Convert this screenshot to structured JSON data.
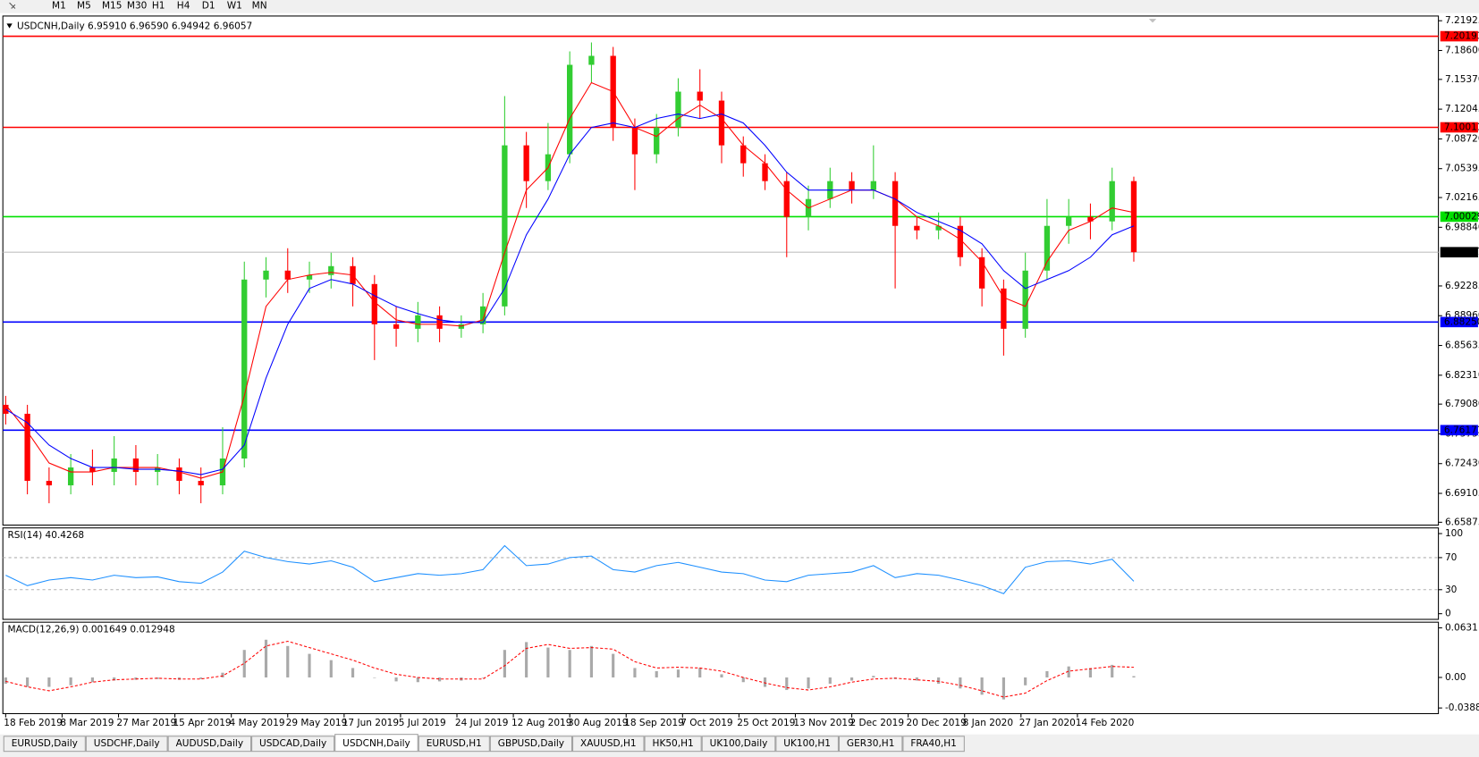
{
  "toolbar": {
    "timeframes": [
      "M1",
      "M5",
      "M15",
      "M30",
      "H1",
      "H4",
      "D1",
      "W1",
      "MN"
    ]
  },
  "chart_data": [
    {
      "type": "candlestick",
      "title": "USDCNH,Daily  6.95910 6.96590 6.94942 6.96057",
      "x": [
        0,
        5,
        10,
        15,
        20,
        25,
        30,
        35,
        40,
        45,
        50,
        55,
        60,
        65,
        70,
        75,
        80,
        85,
        90,
        95,
        100,
        105,
        110,
        115,
        120,
        125,
        130,
        135,
        140,
        145,
        150,
        155,
        160,
        165,
        170,
        175,
        180,
        185,
        190,
        195,
        200,
        205,
        210,
        215,
        220,
        225,
        230,
        235,
        240,
        245,
        250,
        255,
        260
      ],
      "xlim": [
        -0.65,
        330.2
      ],
      "open": [
        6.79,
        6.78,
        6.705,
        6.7,
        6.72,
        6.715,
        6.73,
        6.715,
        6.72,
        6.705,
        6.7,
        6.73,
        6.93,
        6.94,
        6.93,
        6.935,
        6.945,
        6.925,
        6.88,
        6.875,
        6.89,
        6.875,
        6.88,
        6.9,
        7.08,
        7.04,
        7.07,
        7.17,
        7.18,
        7.1,
        7.07,
        7.1,
        7.14,
        7.13,
        7.08,
        7.06,
        7.04,
        7.0,
        7.02,
        7.04,
        7.03,
        7.04,
        6.99,
        6.985,
        6.99,
        6.955,
        6.92,
        6.875,
        6.94,
        6.99,
        7.0,
        6.995,
        7.04
      ],
      "high": [
        6.8,
        6.79,
        6.72,
        6.735,
        6.74,
        6.755,
        6.745,
        6.735,
        6.73,
        6.72,
        6.765,
        6.95,
        6.955,
        6.965,
        6.95,
        6.96,
        6.955,
        6.935,
        6.9,
        6.905,
        6.9,
        6.89,
        6.915,
        7.135,
        7.095,
        7.105,
        7.185,
        7.195,
        7.19,
        7.11,
        7.115,
        7.155,
        7.165,
        7.14,
        7.09,
        7.07,
        7.05,
        7.035,
        7.055,
        7.05,
        7.08,
        7.05,
        7.0,
        7.005,
        7.0,
        6.965,
        6.93,
        6.96,
        7.02,
        7.02,
        7.015,
        7.055,
        7.045
      ],
      "low": [
        6.768,
        6.69,
        6.68,
        6.69,
        6.7,
        6.7,
        6.7,
        6.7,
        6.69,
        6.68,
        6.69,
        6.72,
        6.91,
        6.915,
        6.915,
        6.92,
        6.9,
        6.84,
        6.855,
        6.86,
        6.86,
        6.865,
        6.87,
        6.89,
        7.01,
        7.03,
        7.06,
        7.15,
        7.085,
        7.03,
        7.06,
        7.09,
        7.11,
        7.06,
        7.045,
        7.03,
        6.955,
        6.985,
        7.01,
        7.015,
        7.02,
        6.92,
        6.975,
        6.975,
        6.945,
        6.9,
        6.845,
        6.865,
        6.93,
        6.97,
        6.975,
        6.985,
        6.95
      ],
      "close": [
        6.78,
        6.705,
        6.7,
        6.72,
        6.715,
        6.73,
        6.715,
        6.72,
        6.705,
        6.7,
        6.73,
        6.93,
        6.94,
        6.93,
        6.935,
        6.945,
        6.925,
        6.88,
        6.875,
        6.89,
        6.875,
        6.88,
        6.9,
        7.08,
        7.04,
        7.07,
        7.17,
        7.18,
        7.1,
        7.07,
        7.1,
        7.14,
        7.13,
        7.08,
        7.06,
        7.04,
        7.0,
        7.02,
        7.04,
        7.03,
        7.04,
        6.99,
        6.985,
        6.99,
        6.955,
        6.92,
        6.875,
        6.94,
        6.99,
        7.0,
        6.995,
        7.04,
        6.96057
      ],
      "up_color": "#32cd32",
      "down_color": "#ff0000",
      "series": [
        {
          "color": "#ff0000",
          "values": [
            6.79,
            6.76,
            6.725,
            6.715,
            6.715,
            6.72,
            6.72,
            6.72,
            6.715,
            6.708,
            6.715,
            6.8,
            6.9,
            6.93,
            6.935,
            6.938,
            6.935,
            6.905,
            6.885,
            6.88,
            6.88,
            6.878,
            6.885,
            6.96,
            7.03,
            7.055,
            7.11,
            7.15,
            7.14,
            7.1,
            7.09,
            7.11,
            7.125,
            7.11,
            7.08,
            7.06,
            7.03,
            7.01,
            7.02,
            7.03,
            7.03,
            7.02,
            7.0,
            6.99,
            6.975,
            6.95,
            6.91,
            6.9,
            6.95,
            6.985,
            6.995,
            7.01,
            7.005
          ]
        },
        {
          "color": "#0000ff",
          "values": [
            6.785,
            6.77,
            6.745,
            6.73,
            6.72,
            6.72,
            6.718,
            6.718,
            6.716,
            6.712,
            6.718,
            6.745,
            6.82,
            6.88,
            6.92,
            6.93,
            6.925,
            6.912,
            6.9,
            6.892,
            6.885,
            6.882,
            6.882,
            6.92,
            6.98,
            7.02,
            7.07,
            7.1,
            7.105,
            7.1,
            7.11,
            7.115,
            7.11,
            7.115,
            7.105,
            7.08,
            7.05,
            7.03,
            7.03,
            7.03,
            7.03,
            7.02,
            7.005,
            6.995,
            6.985,
            6.97,
            6.94,
            6.92,
            6.93,
            6.94,
            6.955,
            6.98,
            6.99
          ]
        }
      ],
      "levels": [
        {
          "value": 7.20193,
          "color": "#ff0000"
        },
        {
          "value": 7.10011,
          "color": "#ff0000"
        },
        {
          "value": 7.00029,
          "color": "#00e000"
        },
        {
          "value": 6.96057,
          "color": "#c0c0c0",
          "label_color": "#000000"
        },
        {
          "value": 6.8825,
          "label": "6.88250",
          "color": "#0000ff"
        },
        {
          "value": 6.76171,
          "color": "#0000ff"
        }
      ],
      "ylim": [
        6.65559,
        7.22452
      ],
      "yticks": [
        7.21925,
        {
          "value": 7.186,
          "label": "7.18600"
        },
        {
          "value": 7.1537,
          "label": "7.15370"
        },
        7.12045,
        {
          "value": 7.0872,
          "label": "7.08720"
        },
        7.05395,
        7.02165,
        {
          "value": 6.9884,
          "label": "6.98840"
        },
        6.92285,
        {
          "value": 6.8896,
          "label": "6.88960"
        },
        6.85635,
        {
          "value": 6.8231,
          "label": "6.82310"
        },
        {
          "value": 6.7908,
          "label": "6.79080"
        },
        6.75755,
        {
          "value": 6.7243,
          "label": "6.72430"
        },
        6.69105,
        6.65875
      ]
    },
    {
      "type": "line",
      "title": "RSI(14) 40.4268",
      "x": [
        0,
        5,
        10,
        15,
        20,
        25,
        30,
        35,
        40,
        45,
        50,
        55,
        60,
        65,
        70,
        75,
        80,
        85,
        90,
        95,
        100,
        105,
        110,
        115,
        120,
        125,
        130,
        135,
        140,
        145,
        150,
        155,
        160,
        165,
        170,
        175,
        180,
        185,
        190,
        195,
        200,
        205,
        210,
        215,
        220,
        225,
        230,
        235,
        240,
        245,
        250,
        255,
        260
      ],
      "xlim": [
        -0.65,
        330.2
      ],
      "series": [
        {
          "color": "#1e90ff",
          "values": [
            48,
            35,
            42,
            45,
            42,
            48,
            45,
            46,
            40,
            38,
            52,
            78,
            70,
            65,
            62,
            66,
            58,
            40,
            45,
            50,
            48,
            50,
            55,
            85,
            60,
            62,
            70,
            72,
            55,
            52,
            60,
            64,
            58,
            52,
            50,
            42,
            40,
            48,
            50,
            52,
            60,
            45,
            50,
            48,
            42,
            35,
            25,
            58,
            65,
            66,
            62,
            68,
            40.4268
          ]
        }
      ],
      "ylim": [
        0,
        100
      ],
      "yticks": [
        100,
        70,
        30,
        0
      ]
    },
    {
      "type": "macd",
      "title": "MACD(12,26,9) 0.001649 0.012948",
      "x": [
        0,
        5,
        10,
        15,
        20,
        25,
        30,
        35,
        40,
        45,
        50,
        55,
        60,
        65,
        70,
        75,
        80,
        85,
        90,
        95,
        100,
        105,
        110,
        115,
        120,
        125,
        130,
        135,
        140,
        145,
        150,
        155,
        160,
        165,
        170,
        175,
        180,
        185,
        190,
        195,
        200,
        205,
        210,
        215,
        220,
        225,
        230,
        235,
        240,
        245,
        250,
        255,
        260
      ],
      "xlim": [
        -0.65,
        330.2
      ],
      "xticks": [
        {
          "value": 0,
          "label": "18 Feb 2019"
        },
        {
          "value": 13,
          "label": "8 Mar 2019"
        },
        {
          "value": 26,
          "label": "27 Mar 2019"
        },
        {
          "value": 39,
          "label": "15 Apr 2019"
        },
        {
          "value": 52,
          "label": "4 May 2019"
        },
        {
          "value": 65,
          "label": "29 May 2019"
        },
        {
          "value": 78,
          "label": "17 Jun 2019"
        },
        {
          "value": 91,
          "label": "5 Jul 2019"
        },
        {
          "value": 104,
          "label": "24 Jul 2019"
        },
        {
          "value": 117,
          "label": "12 Aug 2019"
        },
        {
          "value": 130,
          "label": "30 Aug 2019"
        },
        {
          "value": 143,
          "label": "18 Sep 2019"
        },
        {
          "value": 156,
          "label": "7 Oct 2019"
        },
        {
          "value": 169,
          "label": "25 Oct 2019"
        },
        {
          "value": 182,
          "label": "13 Nov 2019"
        },
        {
          "value": 195,
          "label": "2 Dec 2019"
        },
        {
          "value": 208,
          "label": "20 Dec 2019"
        },
        {
          "value": 221,
          "label": "8 Jan 2020"
        },
        {
          "value": 234,
          "label": "27 Jan 2020"
        },
        {
          "value": 247,
          "label": "14 Feb 2020"
        }
      ],
      "histogram": {
        "color": "#a9a9a9",
        "values": [
          -0.008,
          -0.012,
          -0.012,
          -0.01,
          -0.006,
          -0.004,
          -0.003,
          -0.002,
          -0.003,
          -0.002,
          0.006,
          0.035,
          0.048,
          0.04,
          0.03,
          0.022,
          0.012,
          0.0,
          -0.005,
          -0.006,
          -0.005,
          -0.004,
          0.0,
          0.035,
          0.045,
          0.038,
          0.035,
          0.04,
          0.03,
          0.012,
          0.008,
          0.01,
          0.012,
          0.004,
          -0.006,
          -0.012,
          -0.016,
          -0.014,
          -0.008,
          -0.004,
          0.002,
          -0.002,
          -0.004,
          -0.008,
          -0.014,
          -0.022,
          -0.028,
          -0.01,
          0.008,
          0.014,
          0.012,
          0.016,
          0.001649
        ]
      },
      "signal": {
        "color": "#ff0000",
        "values": [
          -0.005,
          -0.012,
          -0.017,
          -0.012,
          -0.006,
          -0.003,
          -0.002,
          -0.001,
          -0.002,
          -0.002,
          0.002,
          0.018,
          0.04,
          0.046,
          0.038,
          0.03,
          0.022,
          0.012,
          0.004,
          0.0,
          -0.002,
          -0.002,
          -0.002,
          0.015,
          0.037,
          0.042,
          0.037,
          0.038,
          0.036,
          0.02,
          0.012,
          0.013,
          0.012,
          0.008,
          0.0,
          -0.007,
          -0.013,
          -0.016,
          -0.012,
          -0.006,
          -0.002,
          -0.001,
          -0.003,
          -0.005,
          -0.01,
          -0.017,
          -0.025,
          -0.02,
          -0.004,
          0.008,
          0.011,
          0.014,
          0.012948
        ]
      },
      "ylim": [
        -0.038872,
        0.063113
      ],
      "yticks": [
        0.063113,
        {
          "value": 0,
          "label": "0.00"
        },
        -0.038872
      ]
    }
  ],
  "tabs": {
    "items": [
      "EURUSD,Daily",
      "USDCHF,Daily",
      "AUDUSD,Daily",
      "USDCAD,Daily",
      "USDCNH,Daily",
      "EURUSD,H1",
      "GBPUSD,Daily",
      "XAUUSD,H1",
      "HK50,H1",
      "UK100,Daily",
      "UK100,H1",
      "GER30,H1",
      "FRA40,H1"
    ],
    "active": 4
  }
}
